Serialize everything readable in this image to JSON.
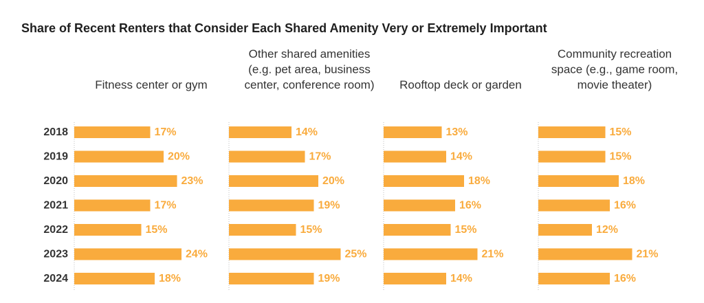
{
  "chart_data": {
    "type": "bar",
    "orientation": "horizontal",
    "title": "Share of Recent Renters that Consider Each Shared Amenity Very or Extremely Important",
    "categories": [
      "2018",
      "2019",
      "2020",
      "2021",
      "2022",
      "2023",
      "2024"
    ],
    "value_suffix": "%",
    "bar_color": "#F9AB3D",
    "label_color": "#F9AB3D",
    "xlim": [
      0,
      100
    ],
    "grid": false,
    "legend": "none",
    "panels": [
      {
        "label_lines": [
          "Fitness center or gym"
        ],
        "values": [
          17,
          20,
          23,
          17,
          15,
          24,
          18
        ]
      },
      {
        "label_lines": [
          "Other shared amenities",
          "(e.g. pet area, business",
          "center, conference room)"
        ],
        "values": [
          14,
          17,
          20,
          19,
          15,
          25,
          19
        ]
      },
      {
        "label_lines": [
          "Rooftop deck or garden"
        ],
        "values": [
          13,
          14,
          18,
          16,
          15,
          21,
          14
        ]
      },
      {
        "label_lines": [
          "Community recreation",
          "space (e.g., game room,",
          "movie theater)"
        ],
        "values": [
          15,
          15,
          18,
          16,
          12,
          21,
          16
        ]
      }
    ]
  }
}
